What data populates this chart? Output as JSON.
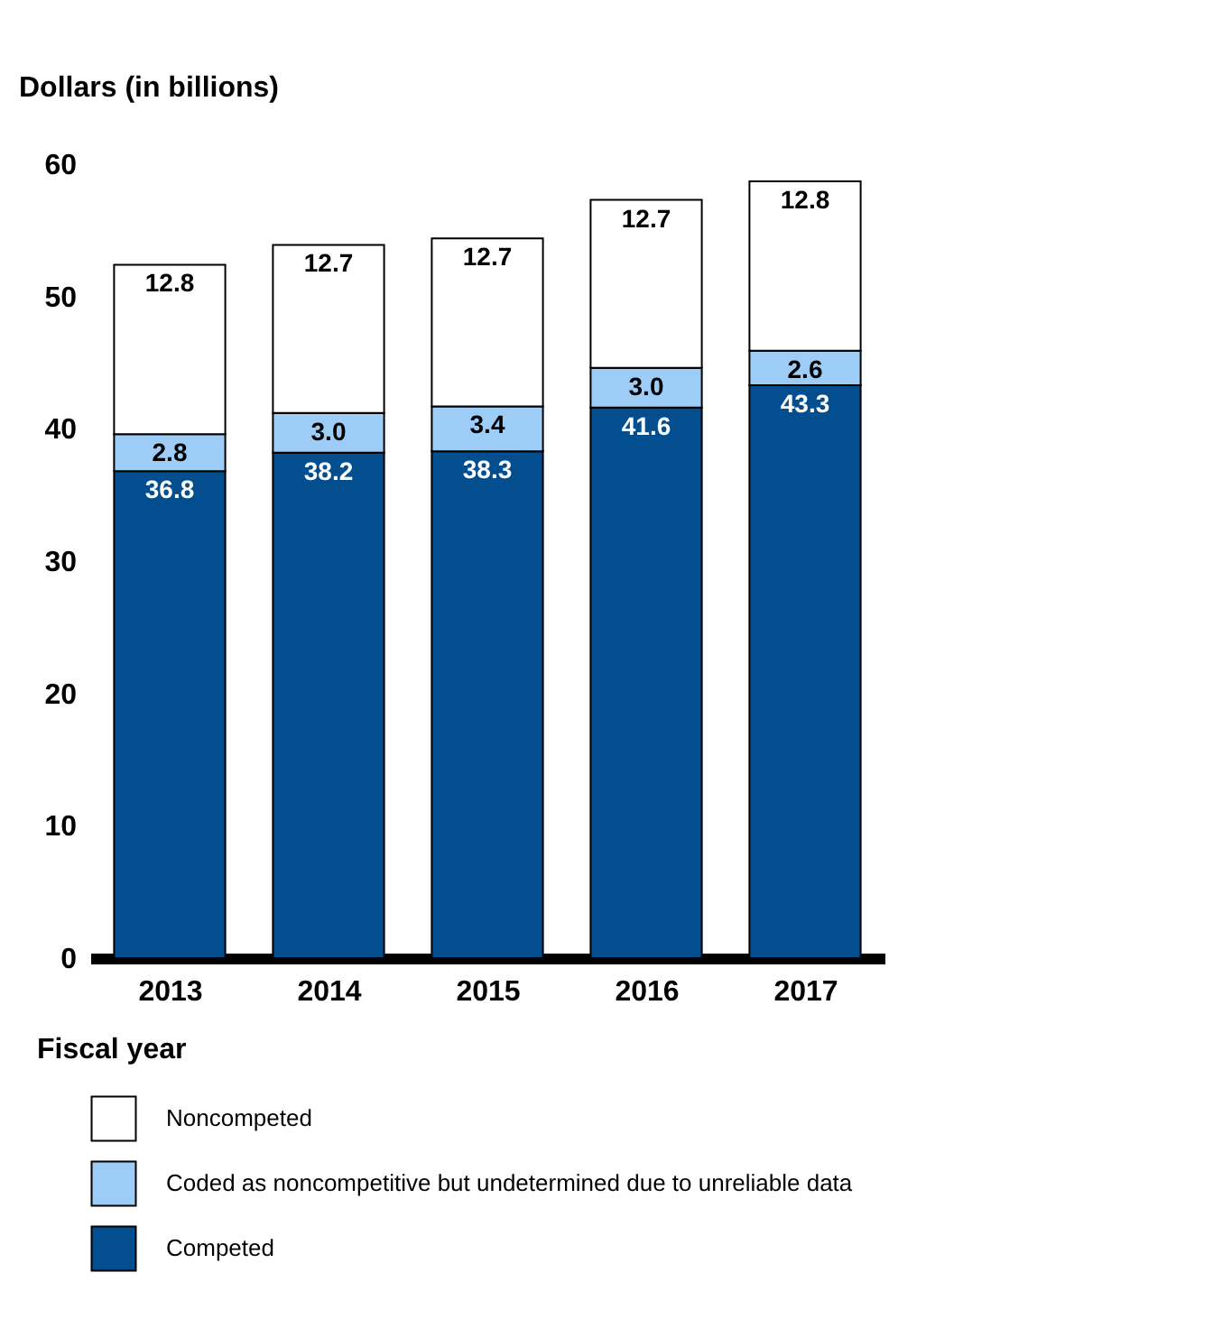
{
  "chart_data": {
    "type": "bar",
    "stacked": true,
    "ylabel": "Dollars (in billions)",
    "xlabel": "Fiscal year",
    "categories": [
      "2013",
      "2014",
      "2015",
      "2016",
      "2017"
    ],
    "series": [
      {
        "name": "Competed",
        "color": "#034e8f",
        "values": [
          36.8,
          38.2,
          38.3,
          41.6,
          43.3
        ],
        "value_labels": [
          "36.8",
          "38.2",
          "38.3",
          "41.6",
          "43.3"
        ]
      },
      {
        "name": "Coded as noncompetitive but undetermined due to unreliable data",
        "color": "#9dcdf7",
        "values": [
          2.8,
          3.0,
          3.4,
          3.0,
          2.6
        ],
        "value_labels": [
          "2.8",
          "3.0",
          "3.4",
          "3.0",
          "2.6"
        ]
      },
      {
        "name": "Noncompeted",
        "color": "#ffffff",
        "values": [
          12.8,
          12.7,
          12.7,
          12.7,
          12.8
        ],
        "value_labels": [
          "12.8",
          "12.7",
          "12.7",
          "12.7",
          "12.8"
        ]
      }
    ],
    "ylim": [
      0,
      60
    ],
    "yticks": [
      0,
      10,
      20,
      30,
      40,
      50,
      60
    ],
    "grid": false,
    "legend": "bottom"
  }
}
